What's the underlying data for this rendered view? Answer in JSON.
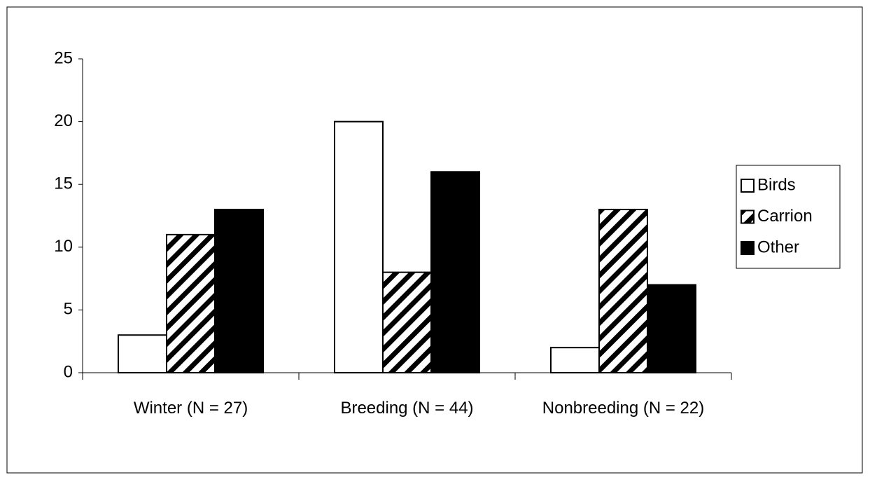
{
  "chart_data": {
    "type": "bar",
    "categories": [
      "Winter (N = 27)",
      "Breeding (N = 44)",
      "Nonbreeding (N = 22)"
    ],
    "series": [
      {
        "name": "Birds",
        "color": "#ffffff",
        "hatch": false,
        "values": [
          3,
          20,
          2
        ]
      },
      {
        "name": "Carrion",
        "color": "#000000",
        "hatch": true,
        "values": [
          11,
          8,
          13
        ]
      },
      {
        "name": "Other",
        "color": "#000000",
        "hatch": false,
        "values": [
          13,
          16,
          7
        ]
      }
    ],
    "ylim": [
      0,
      25
    ],
    "yticks": [
      0,
      5,
      10,
      15,
      20,
      25
    ],
    "grid": false,
    "legend": "right"
  }
}
